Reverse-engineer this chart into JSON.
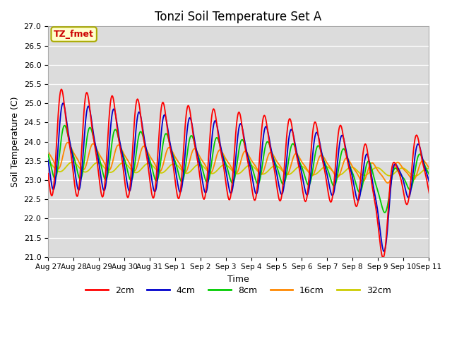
{
  "title": "Tonzi Soil Temperature Set A",
  "xlabel": "Time",
  "ylabel": "Soil Temperature (C)",
  "ylim": [
    21.0,
    27.0
  ],
  "yticks": [
    21.0,
    21.5,
    22.0,
    22.5,
    23.0,
    23.5,
    24.0,
    24.5,
    25.0,
    25.5,
    26.0,
    26.5,
    27.0
  ],
  "colors": {
    "2cm": "#FF0000",
    "4cm": "#0000CC",
    "8cm": "#00CC00",
    "16cm": "#FF8800",
    "32cm": "#CCCC00"
  },
  "annotation": "TZ_fmet",
  "annotation_color": "#CC0000",
  "annotation_bg": "#FFFFCC",
  "background_color": "#DCDCDC",
  "x_tick_labels": [
    "Aug 27",
    "Aug 28",
    "Aug 29",
    "Aug 30",
    "Aug 31",
    "Sep 1",
    "Sep 2",
    "Sep 3",
    "Sep 4",
    "Sep 5",
    "Sep 6",
    "Sep 7",
    "Sep 8",
    "Sep 9",
    "Sep 10",
    "Sep 11"
  ],
  "n_days": 16,
  "points_per_day": 48
}
